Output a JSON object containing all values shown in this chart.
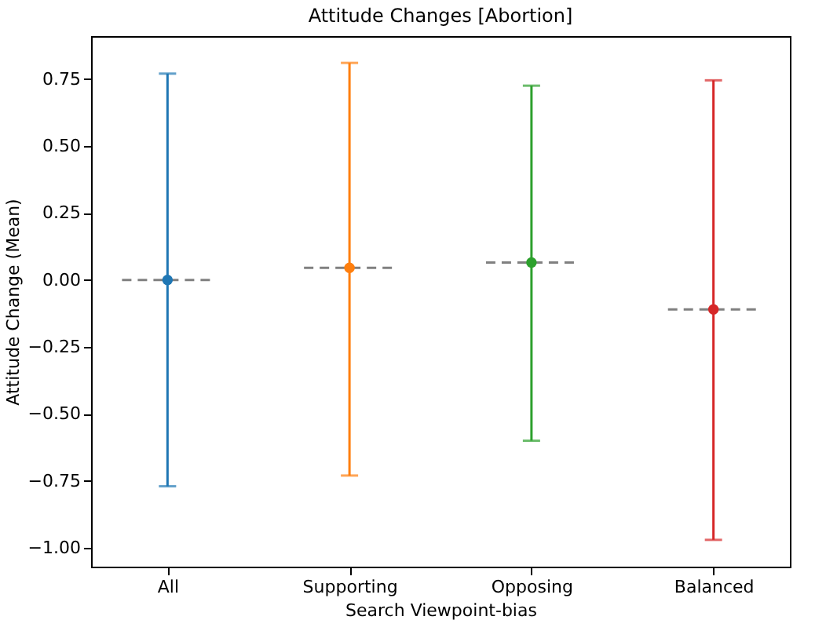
{
  "chart_data": {
    "type": "scatter",
    "title": "Attitude Changes [Abortion]",
    "xlabel": "Search Viewpoint-bias",
    "ylabel": "Attitude Change (Mean)",
    "categories": [
      "All",
      "Supporting",
      "Opposing",
      "Balanced"
    ],
    "series": [
      {
        "type": "scatter",
        "marker": "circle",
        "colors": [
          "#1f77b4",
          "#ff7f0e",
          "#2ca02c",
          "#d62728"
        ],
        "values": [
          0.0,
          0.045,
          0.065,
          -0.11
        ],
        "errors": [
          [
            -0.77,
            0.77
          ],
          [
            -0.73,
            0.81
          ],
          [
            -0.6,
            0.725
          ],
          [
            -0.97,
            0.745
          ]
        ]
      }
    ],
    "ylim": [
      -1.07,
      0.91
    ],
    "yticks": [
      {
        "value": -1,
        "label": "−1.00"
      },
      {
        "value": -0.75,
        "label": "−0.75"
      },
      {
        "value": -0.5,
        "label": "−0.50"
      },
      {
        "value": -0.25,
        "label": "−0.25"
      },
      {
        "value": 0,
        "label": "0.00"
      },
      {
        "value": 0.25,
        "label": "0.25"
      },
      {
        "value": 0.5,
        "label": "0.50"
      },
      {
        "value": 0.75,
        "label": "0.75"
      }
    ]
  }
}
